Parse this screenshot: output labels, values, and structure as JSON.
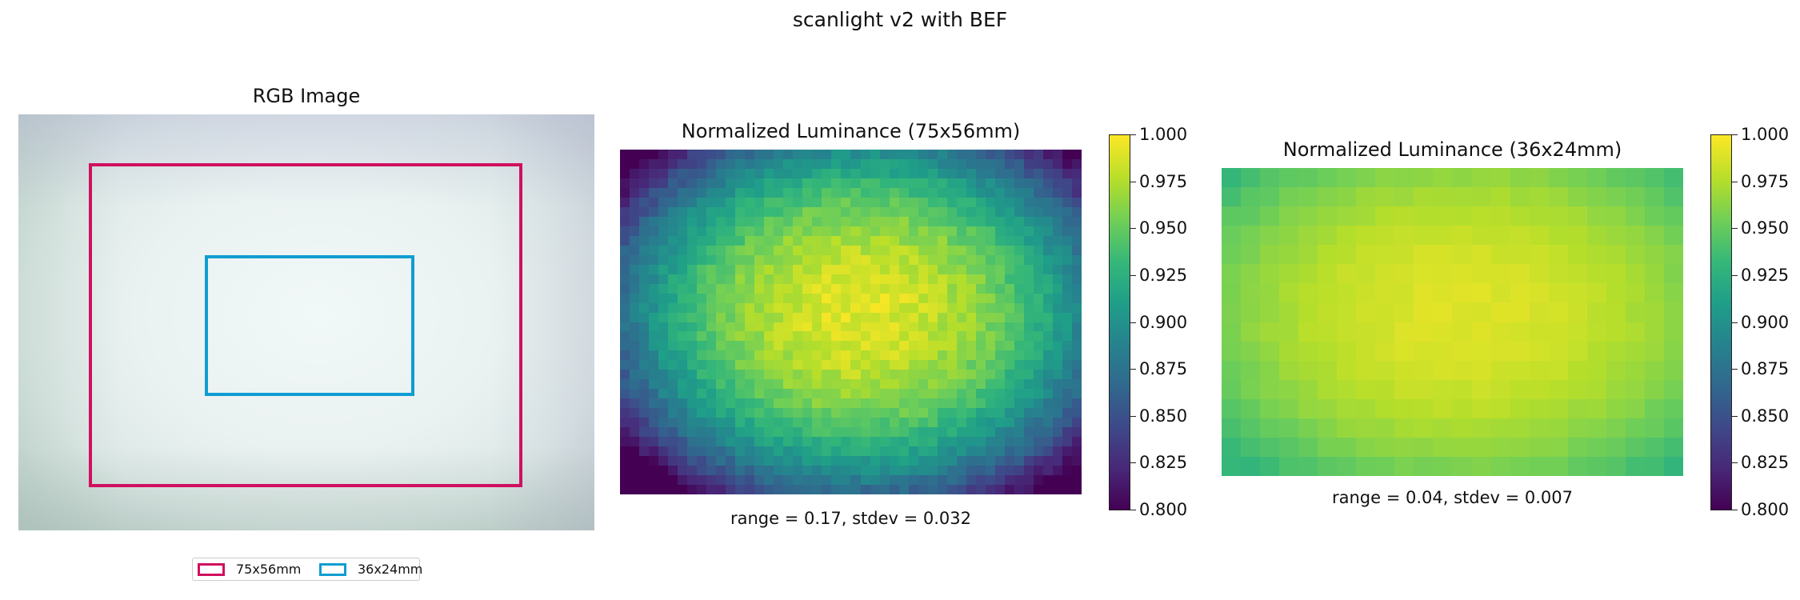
{
  "figure": {
    "suptitle": "scanlight v2 with BEF"
  },
  "panels": {
    "rgb": {
      "title": "RGB Image",
      "legend": [
        {
          "label": "75x56mm",
          "color": "#d0105e"
        },
        {
          "label": "36x24mm",
          "color": "#109dd1"
        }
      ]
    },
    "lum75": {
      "title": "Normalized Luminance (75x56mm)",
      "caption": "range = 0.17, stdev = 0.032"
    },
    "lum36": {
      "title": "Normalized Luminance (36x24mm)",
      "caption": "range = 0.04, stdev = 0.007"
    }
  },
  "colorbar": {
    "ticks": [
      "1.000",
      "0.975",
      "0.950",
      "0.925",
      "0.900",
      "0.875",
      "0.850",
      "0.825",
      "0.800"
    ],
    "colormap": "viridis",
    "vmin": 0.8,
    "vmax": 1.0
  },
  "chart_data": [
    {
      "type": "heatmap",
      "title": "RGB Image",
      "legend": [
        "75x56mm",
        "36x24mm"
      ],
      "legend_placement": "bottom"
    },
    {
      "type": "heatmap",
      "title": "Normalized Luminance (75x56mm)",
      "colormap": "viridis",
      "vmin": 0.8,
      "vmax": 1.0,
      "value_center": 0.99,
      "value_edge": 0.88,
      "range": 0.17,
      "stdev": 0.032
    },
    {
      "type": "heatmap",
      "title": "Normalized Luminance (36x24mm)",
      "colormap": "viridis",
      "vmin": 0.8,
      "vmax": 1.0,
      "value_center": 0.99,
      "value_edge": 0.96,
      "range": 0.04,
      "stdev": 0.007
    }
  ]
}
